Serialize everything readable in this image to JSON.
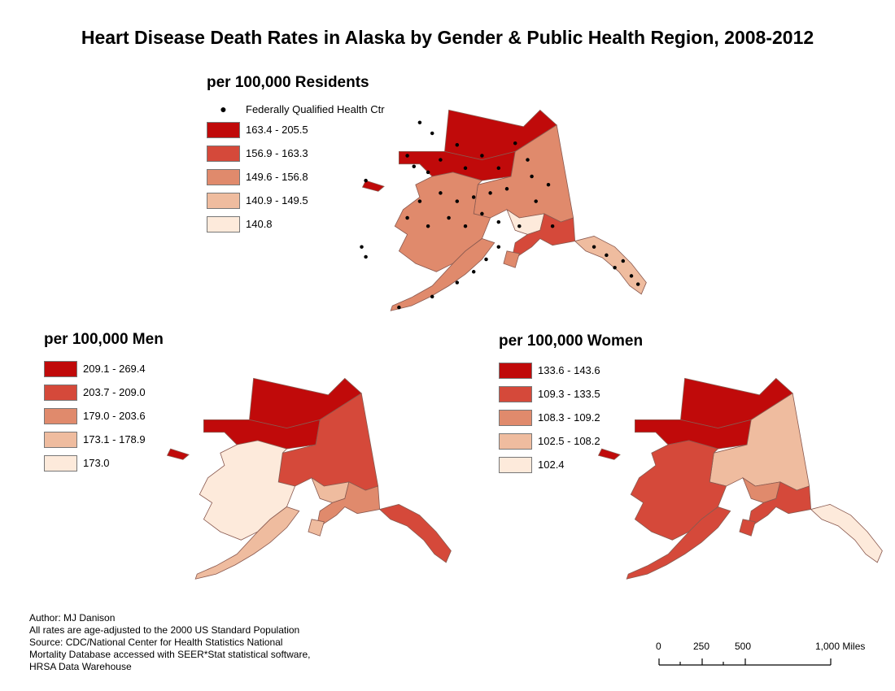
{
  "title": "Heart Disease Death Rates in Alaska by Gender & Public Health Region, 2008-2012",
  "maps": [
    {
      "id": "residents",
      "legend_title": "per 100,000 Residents",
      "point_layer": "Federally Qualified Health Ctr",
      "classes": [
        {
          "label": "163.4 - 205.5",
          "color": "#c00a0a"
        },
        {
          "label": "156.9 - 163.3",
          "color": "#d5493a"
        },
        {
          "label": "149.6 - 156.8",
          "color": "#e08a6c"
        },
        {
          "label": "140.9 - 149.5",
          "color": "#efbc9f"
        },
        {
          "label": "140.8",
          "color": "#fdeadb"
        }
      ]
    },
    {
      "id": "men",
      "legend_title": "per 100,000 Men",
      "classes": [
        {
          "label": "209.1 - 269.4",
          "color": "#c00a0a"
        },
        {
          "label": "203.7 - 209.0",
          "color": "#d5493a"
        },
        {
          "label": "179.0 - 203.6",
          "color": "#e08a6c"
        },
        {
          "label": "173.1 - 178.9",
          "color": "#efbc9f"
        },
        {
          "label": "173.0",
          "color": "#fdeadb"
        }
      ]
    },
    {
      "id": "women",
      "legend_title": "per 100,000 Women",
      "classes": [
        {
          "label": "133.6 - 143.6",
          "color": "#c00a0a"
        },
        {
          "label": "109.3 - 133.5",
          "color": "#d5493a"
        },
        {
          "label": "108.3 - 109.2",
          "color": "#e08a6c"
        },
        {
          "label": "102.5 - 108.2",
          "color": "#efbc9f"
        },
        {
          "label": "102.4",
          "color": "#fdeadb"
        }
      ]
    }
  ],
  "credits": [
    "Author:  MJ Danison",
    "All rates are age-adjusted to the 2000 US Standard Population",
    "Source: CDC/National Center for Health Statistics National",
    "Mortality Database accessed with SEER*Stat statistical software,",
    "HRSA Data Warehouse"
  ],
  "scale_bar": {
    "labels": [
      "0",
      "250",
      "500",
      "1,000 Miles"
    ],
    "unit": "Miles"
  }
}
